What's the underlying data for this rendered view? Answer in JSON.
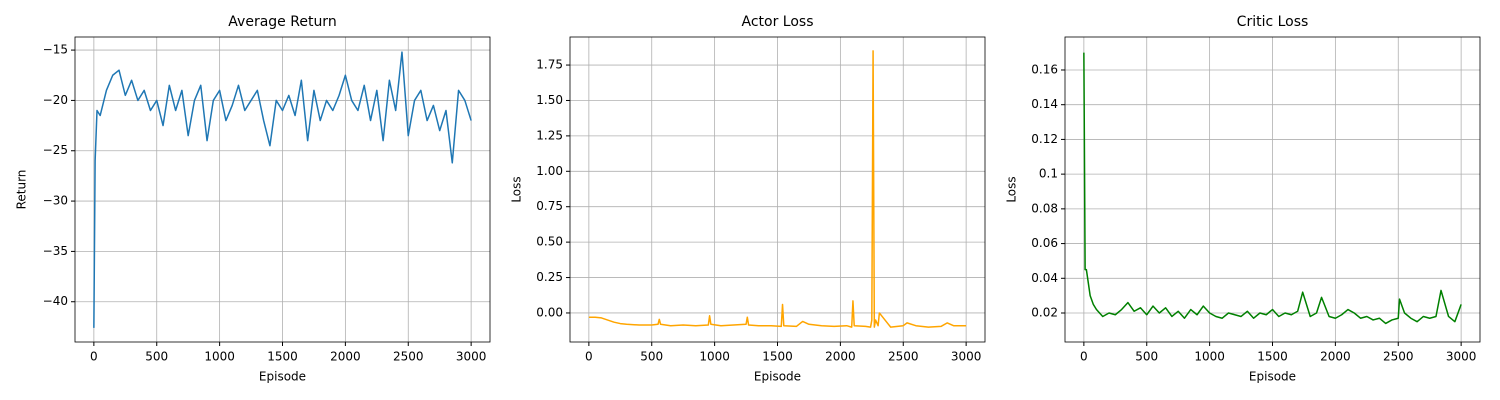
{
  "chart_data": [
    {
      "type": "line",
      "title": "Average Return",
      "xlabel": "Episode",
      "ylabel": "Return",
      "color": "#1f77b4",
      "grid": true,
      "xlim": [
        -150,
        3150
      ],
      "xticks": [
        0,
        500,
        1000,
        1500,
        2000,
        2500,
        3000
      ],
      "ylim": [
        -44.0,
        -13.7
      ],
      "yticks": [
        {
          "value": -40,
          "label": "−40"
        },
        {
          "value": -35,
          "label": "−35"
        },
        {
          "value": -30,
          "label": "−30"
        },
        {
          "value": -25,
          "label": "−25"
        },
        {
          "value": -20,
          "label": "−20"
        },
        {
          "value": -15,
          "label": "−15"
        }
      ],
      "x": [
        0,
        10,
        25,
        50,
        100,
        150,
        200,
        250,
        300,
        350,
        400,
        450,
        500,
        550,
        600,
        650,
        700,
        750,
        800,
        850,
        900,
        950,
        1000,
        1050,
        1100,
        1150,
        1200,
        1250,
        1300,
        1350,
        1400,
        1450,
        1500,
        1550,
        1600,
        1650,
        1700,
        1750,
        1800,
        1850,
        1900,
        1950,
        2000,
        2050,
        2100,
        2150,
        2200,
        2250,
        2300,
        2350,
        2400,
        2450,
        2500,
        2550,
        2600,
        2650,
        2700,
        2750,
        2800,
        2850,
        2900,
        2950,
        3000
      ],
      "values": [
        -42.6,
        -26,
        -21,
        -21.5,
        -19,
        -17.5,
        -17,
        -19.5,
        -18,
        -20,
        -19,
        -21,
        -20,
        -22.5,
        -18.5,
        -21,
        -19,
        -23.5,
        -20,
        -18.5,
        -24,
        -20,
        -19,
        -22,
        -20.5,
        -18.5,
        -21,
        -20,
        -19,
        -22,
        -24.5,
        -20,
        -21,
        -19.5,
        -21.5,
        -18,
        -24,
        -19,
        -22,
        -20,
        -21,
        -19.5,
        -17.5,
        -20,
        -21,
        -18.5,
        -22,
        -19,
        -24,
        -18,
        -21,
        -15.2,
        -23.5,
        -20,
        -19,
        -22,
        -20.5,
        -23,
        -21,
        -26.2,
        -19,
        -20,
        -22
      ]
    },
    {
      "type": "line",
      "title": "Actor Loss",
      "xlabel": "Episode",
      "ylabel": "Loss",
      "color": "#ffa500",
      "grid": true,
      "xlim": [
        -150,
        3150
      ],
      "xticks": [
        0,
        500,
        1000,
        1500,
        2000,
        2500,
        3000
      ],
      "ylim": [
        -0.205,
        1.948
      ],
      "yticks": [
        {
          "value": 0,
          "label": "0.00"
        },
        0.25,
        {
          "value": 0.5,
          "label": "0.50"
        },
        0.75,
        {
          "value": 1,
          "label": "1.00"
        },
        1.25,
        {
          "value": 1.5,
          "label": "1.50"
        },
        1.75
      ],
      "x": [
        0,
        50,
        100,
        150,
        200,
        250,
        300,
        400,
        500,
        550,
        560,
        570,
        650,
        750,
        850,
        950,
        960,
        970,
        1050,
        1150,
        1250,
        1260,
        1270,
        1350,
        1450,
        1530,
        1540,
        1550,
        1650,
        1700,
        1750,
        1850,
        1950,
        2050,
        2090,
        2100,
        2110,
        2200,
        2240,
        2250,
        2260,
        2270,
        2280,
        2300,
        2310,
        2400,
        2500,
        2530,
        2600,
        2700,
        2800,
        2850,
        2900,
        3000
      ],
      "values": [
        -0.03,
        -0.03,
        -0.035,
        -0.05,
        -0.065,
        -0.075,
        -0.08,
        -0.085,
        -0.085,
        -0.08,
        -0.045,
        -0.08,
        -0.09,
        -0.085,
        -0.09,
        -0.085,
        -0.02,
        -0.08,
        -0.09,
        -0.085,
        -0.08,
        -0.03,
        -0.085,
        -0.09,
        -0.09,
        -0.095,
        0.06,
        -0.09,
        -0.095,
        -0.06,
        -0.08,
        -0.09,
        -0.095,
        -0.09,
        -0.1,
        0.085,
        -0.09,
        -0.095,
        -0.1,
        -0.05,
        1.85,
        -0.1,
        -0.05,
        -0.09,
        0.0,
        -0.1,
        -0.09,
        -0.07,
        -0.09,
        -0.1,
        -0.095,
        -0.07,
        -0.09,
        -0.09
      ]
    },
    {
      "type": "line",
      "title": "Critic Loss",
      "xlabel": "Episode",
      "ylabel": "Loss",
      "color": "#008000",
      "grid": true,
      "xlim": [
        -150,
        3150
      ],
      "xticks": [
        0,
        500,
        1000,
        1500,
        2000,
        2500,
        3000
      ],
      "ylim": [
        0.0033,
        0.179
      ],
      "yticks": [
        0.02,
        0.04,
        0.06,
        0.08,
        0.1,
        0.12,
        0.14,
        0.16
      ],
      "x": [
        0,
        10,
        20,
        30,
        50,
        75,
        100,
        150,
        200,
        250,
        300,
        350,
        400,
        450,
        500,
        550,
        600,
        650,
        700,
        750,
        800,
        850,
        900,
        950,
        1000,
        1050,
        1100,
        1150,
        1200,
        1250,
        1300,
        1350,
        1400,
        1450,
        1500,
        1550,
        1600,
        1650,
        1700,
        1740,
        1800,
        1850,
        1890,
        1950,
        2000,
        2050,
        2100,
        2150,
        2200,
        2250,
        2300,
        2350,
        2400,
        2450,
        2500,
        2510,
        2550,
        2600,
        2650,
        2700,
        2750,
        2800,
        2840,
        2900,
        2950,
        3000
      ],
      "values": [
        0.17,
        0.045,
        0.045,
        0.04,
        0.03,
        0.025,
        0.022,
        0.018,
        0.02,
        0.019,
        0.022,
        0.026,
        0.021,
        0.023,
        0.019,
        0.024,
        0.02,
        0.023,
        0.018,
        0.021,
        0.017,
        0.022,
        0.019,
        0.024,
        0.02,
        0.018,
        0.017,
        0.02,
        0.019,
        0.018,
        0.021,
        0.017,
        0.02,
        0.019,
        0.022,
        0.018,
        0.02,
        0.019,
        0.021,
        0.032,
        0.018,
        0.02,
        0.029,
        0.018,
        0.017,
        0.019,
        0.022,
        0.02,
        0.017,
        0.018,
        0.016,
        0.017,
        0.014,
        0.016,
        0.017,
        0.028,
        0.02,
        0.017,
        0.015,
        0.018,
        0.017,
        0.018,
        0.033,
        0.018,
        0.015,
        0.025
      ]
    }
  ]
}
